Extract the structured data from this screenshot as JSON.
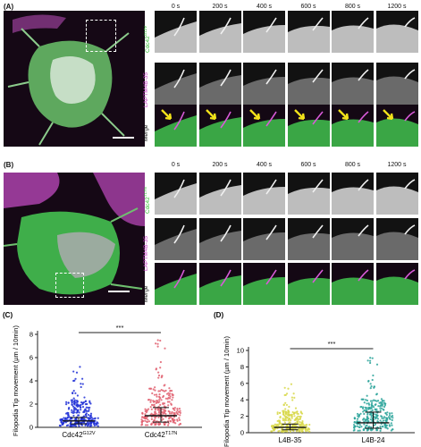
{
  "panel_a": {
    "letter": "(A)",
    "times": [
      "0 s",
      "200 s",
      "400 s",
      "600 s",
      "800 s",
      "1200 s"
    ],
    "row_labels": {
      "green": "Cdc42",
      "green_sup": "G12V",
      "magenta": "LAPTM4B-35",
      "merge": "Merge"
    }
  },
  "panel_b": {
    "letter": "(B)",
    "times": [
      "0 s",
      "200 s",
      "400 s",
      "600 s",
      "800 s",
      "1200 s"
    ],
    "row_labels": {
      "green": "Cdc42",
      "green_sup": "T17N",
      "magenta": "LAPTM4B-35",
      "merge": "Merge"
    }
  },
  "chart_data": [
    {
      "type": "scatter",
      "panel": "(C)",
      "ylabel": "Filopodia Tip movement (µm / 10min)",
      "categories": [
        "Cdc42",
        "Cdc42"
      ],
      "category_sup": [
        "G12V",
        "T17N"
      ],
      "ylim": [
        0,
        8
      ],
      "yticks": [
        0,
        2,
        4,
        6,
        8
      ],
      "significance": "***",
      "series": [
        {
          "color": "#1f2fd6",
          "median": 0.55,
          "q1": 0.3,
          "q3": 0.85,
          "max": 5.2
        },
        {
          "color": "#e06070",
          "median": 1.0,
          "q1": 0.45,
          "q3": 1.7,
          "max": 7.5
        }
      ]
    },
    {
      "type": "scatter",
      "panel": "(D)",
      "ylabel": "Filopodia Tip movement (µm / 10min)",
      "categories": [
        "L4B-35",
        "L4B-24"
      ],
      "ylim": [
        0,
        10
      ],
      "yticks": [
        0,
        2,
        4,
        6,
        8,
        10
      ],
      "significance": "***",
      "series": [
        {
          "color": "#d8d84a",
          "median": 0.65,
          "q1": 0.35,
          "q3": 1.05,
          "max": 5.9
        },
        {
          "color": "#2aa39a",
          "median": 1.2,
          "q1": 0.55,
          "q3": 2.5,
          "max": 9.1
        }
      ]
    }
  ]
}
